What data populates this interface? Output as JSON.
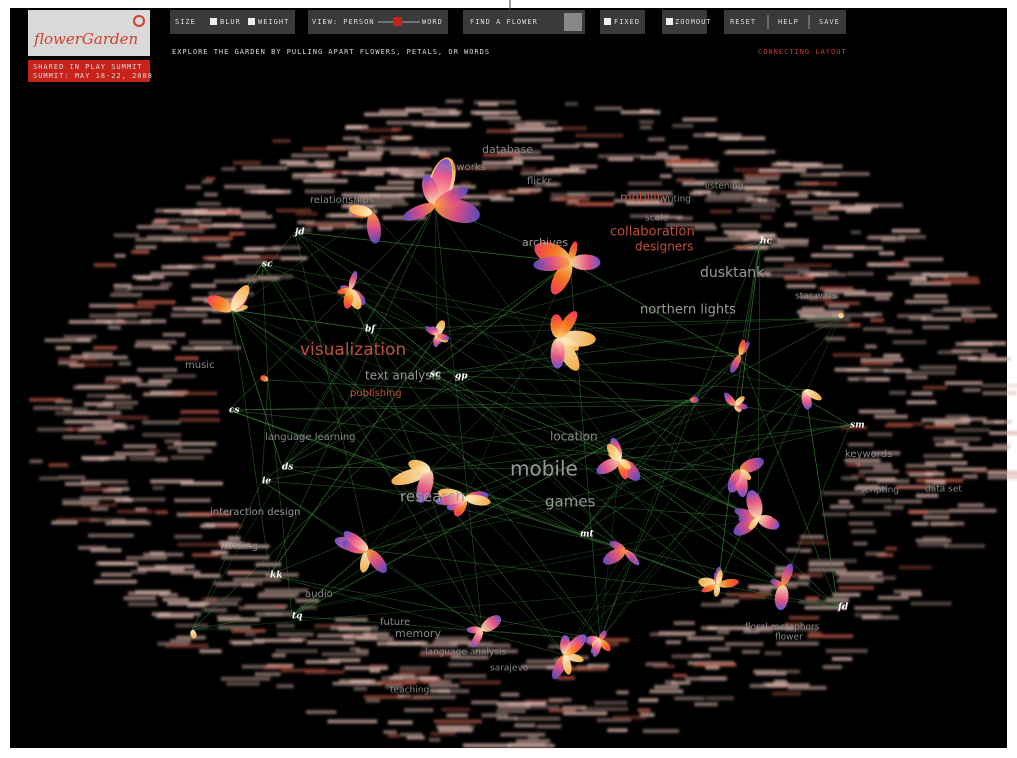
{
  "header": {
    "logo": "flowerGarden",
    "event_line1": "SHARED IN PLAY SUMMIT",
    "event_line2": "SUMMIT: MAY 18-22, 2008",
    "instructions": "EXPLORE THE GARDEN BY PULLING APART FLOWERS, PETALS, OR WORDS",
    "layout_status": "CONNECTING LAYOUT"
  },
  "toolbar": {
    "size_label": "SIZE",
    "option1": "BLUR",
    "option2": "WEIGHT",
    "view_label": "VIEW: PERSON",
    "view_end": "WORD",
    "find": "FIND A FLOWER",
    "fixed": "FIXED",
    "zoom": "ZOOMOUT",
    "reset": "RESET",
    "help": "HELP",
    "save": "SAVE"
  },
  "words": [
    "mobile",
    "visualization",
    "games",
    "research",
    "location",
    "text analysis",
    "dusktank",
    "northern lights",
    "collaboration",
    "designers",
    "mobility",
    "database",
    "networks",
    "flickr",
    "relationships",
    "music",
    "language learning",
    "interaction design",
    "funding",
    "memory",
    "audio",
    "future",
    "language analysis",
    "sarajevo",
    "teaching",
    "keywords",
    "scripting",
    "data set",
    "floral metaphors",
    "flower",
    "star wars",
    "listening",
    "writing",
    "scale",
    "publishing",
    "archives"
  ],
  "people": [
    "jd",
    "sc",
    "bf",
    "cs",
    "ds",
    "ie",
    "kk",
    "tq",
    "hc",
    "sm",
    "mt",
    "sc",
    "gp",
    "fd"
  ]
}
